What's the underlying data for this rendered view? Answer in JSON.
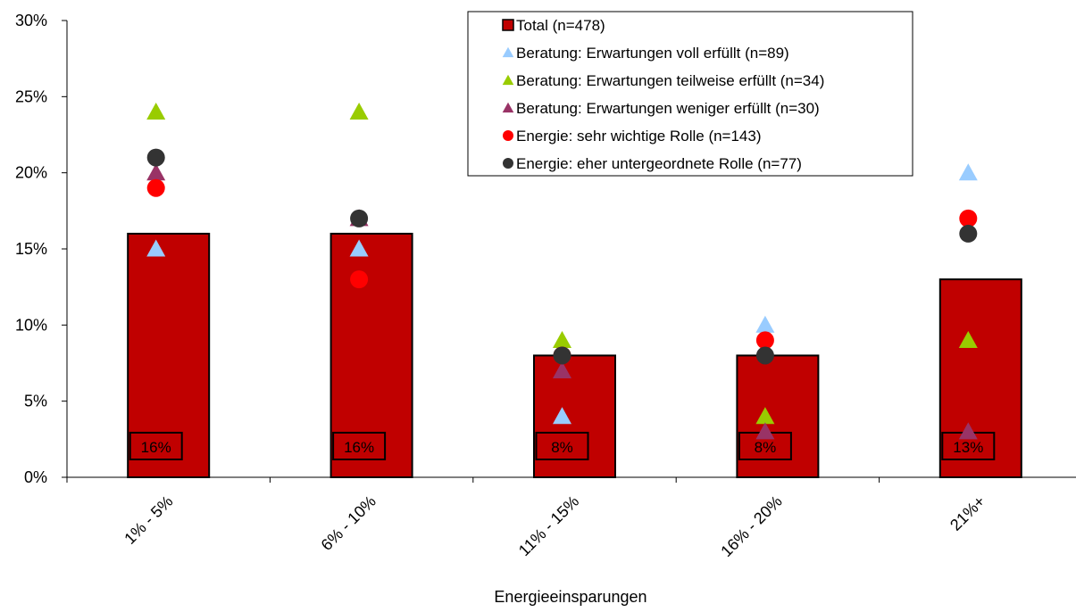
{
  "chart_data": {
    "type": "bar",
    "title": "",
    "xlabel": "Energieeinsparungen",
    "ylabel": "",
    "ylim": [
      0,
      30
    ],
    "yticks": [
      0,
      5,
      10,
      15,
      20,
      25,
      30
    ],
    "ytick_suffix": "%",
    "categories": [
      "1% - 5%",
      "6% - 10%",
      "11% - 15%",
      "16% - 20%",
      "21%+"
    ],
    "bars": {
      "name": "Total (n=478)",
      "values": [
        16,
        16,
        8,
        8,
        13
      ],
      "labels": [
        "16%",
        "16%",
        "8%",
        "8%",
        "13%"
      ],
      "color": "#c00000",
      "border": "#000000"
    },
    "series": [
      {
        "name": "Beratung: Erwartungen voll erfüllt (n=89)",
        "marker": "triangle",
        "color": "#99ccff",
        "values": [
          15,
          15,
          4,
          10,
          20
        ]
      },
      {
        "name": "Beratung: Erwartungen teilweise erfüllt (n=34)",
        "marker": "triangle",
        "color": "#99cc00",
        "values": [
          24,
          24,
          9,
          4,
          9
        ]
      },
      {
        "name": "Beratung: Erwartungen weniger erfüllt (n=30)",
        "marker": "triangle",
        "color": "#993366",
        "values": [
          20,
          17,
          7,
          3,
          3
        ]
      },
      {
        "name": "Energie: sehr wichtige Rolle (n=143)",
        "marker": "circle",
        "color": "#ff0000",
        "values": [
          19,
          13,
          8,
          9,
          17
        ]
      },
      {
        "name": "Energie: eher untergeordnete Rolle (n=77)",
        "marker": "circle",
        "color": "#333333",
        "values": [
          21,
          17,
          8,
          8,
          16
        ]
      }
    ],
    "grid": false,
    "legend_position": "top-right"
  }
}
